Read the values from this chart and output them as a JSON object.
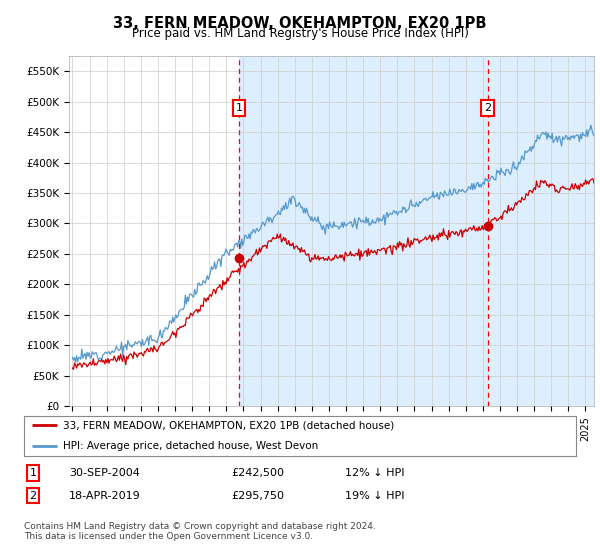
{
  "title": "33, FERN MEADOW, OKEHAMPTON, EX20 1PB",
  "subtitle": "Price paid vs. HM Land Registry's House Price Index (HPI)",
  "ylabel_ticks": [
    "£0",
    "£50K",
    "£100K",
    "£150K",
    "£200K",
    "£250K",
    "£300K",
    "£350K",
    "£400K",
    "£450K",
    "£500K",
    "£550K"
  ],
  "ytick_values": [
    0,
    50000,
    100000,
    150000,
    200000,
    250000,
    300000,
    350000,
    400000,
    450000,
    500000,
    550000
  ],
  "ylim": [
    0,
    575000
  ],
  "xlim_start": 1994.8,
  "xlim_end": 2025.5,
  "hpi_color": "#5599cc",
  "price_color": "#cc0000",
  "fig_bg_color": "#ffffff",
  "plot_bg_color": "#ffffff",
  "shade_color": "#ddeeff",
  "grid_color": "#cccccc",
  "sale1_x": 2004.75,
  "sale1_y": 242500,
  "sale2_x": 2019.29,
  "sale2_y": 295750,
  "sale1_date": "30-SEP-2004",
  "sale1_price": "£242,500",
  "sale1_hpi": "12% ↓ HPI",
  "sale2_date": "18-APR-2019",
  "sale2_price": "£295,750",
  "sale2_hpi": "19% ↓ HPI",
  "legend_line1": "33, FERN MEADOW, OKEHAMPTON, EX20 1PB (detached house)",
  "legend_line2": "HPI: Average price, detached house, West Devon",
  "footnote": "Contains HM Land Registry data © Crown copyright and database right 2024.\nThis data is licensed under the Open Government Licence v3.0.",
  "xtick_years": [
    1995,
    1996,
    1997,
    1998,
    1999,
    2000,
    2001,
    2002,
    2003,
    2004,
    2005,
    2006,
    2007,
    2008,
    2009,
    2010,
    2011,
    2012,
    2013,
    2014,
    2015,
    2016,
    2017,
    2018,
    2019,
    2020,
    2021,
    2022,
    2023,
    2024,
    2025
  ]
}
